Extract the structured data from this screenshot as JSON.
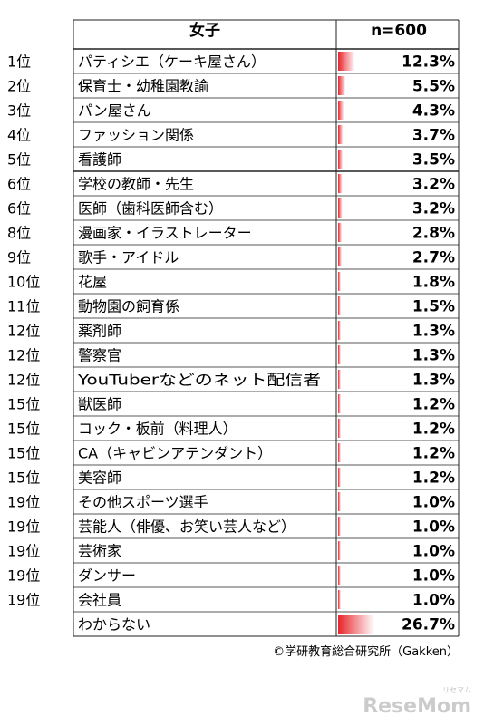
{
  "header": {
    "group_label": "女子",
    "sample_label": "n=600"
  },
  "chart_data": {
    "type": "table",
    "columns": [
      "女子",
      "n=600"
    ],
    "rows": [
      {
        "rank": "1位",
        "name": "パティシエ（ケーキ屋さん）",
        "value": 12.3,
        "label": "12.3%"
      },
      {
        "rank": "2位",
        "name": "保育士・幼稚園教諭",
        "value": 5.5,
        "label": "5.5%"
      },
      {
        "rank": "3位",
        "name": "パン屋さん",
        "value": 4.3,
        "label": "4.3%"
      },
      {
        "rank": "4位",
        "name": "ファッション関係",
        "value": 3.7,
        "label": "3.7%"
      },
      {
        "rank": "5位",
        "name": "看護師",
        "value": 3.5,
        "label": "3.5%"
      },
      {
        "rank": "6位",
        "name": "学校の教師・先生",
        "value": 3.2,
        "label": "3.2%"
      },
      {
        "rank": "6位",
        "name": "医師（歯科医師含む）",
        "value": 3.2,
        "label": "3.2%"
      },
      {
        "rank": "8位",
        "name": "漫画家・イラストレーター",
        "value": 2.8,
        "label": "2.8%"
      },
      {
        "rank": "9位",
        "name": "歌手・アイドル",
        "value": 2.7,
        "label": "2.7%"
      },
      {
        "rank": "10位",
        "name": "花屋",
        "value": 1.8,
        "label": "1.8%"
      },
      {
        "rank": "11位",
        "name": "動物園の飼育係",
        "value": 1.5,
        "label": "1.5%"
      },
      {
        "rank": "12位",
        "name": "薬剤師",
        "value": 1.3,
        "label": "1.3%"
      },
      {
        "rank": "12位",
        "name": "警察官",
        "value": 1.3,
        "label": "1.3%"
      },
      {
        "rank": "12位",
        "name": "YouTuberなどのネット配信者",
        "value": 1.3,
        "label": "1.3%"
      },
      {
        "rank": "15位",
        "name": "獣医師",
        "value": 1.2,
        "label": "1.2%"
      },
      {
        "rank": "15位",
        "name": "コック・板前（料理人）",
        "value": 1.2,
        "label": "1.2%"
      },
      {
        "rank": "15位",
        "name": "CA（キャビンアテンダント）",
        "value": 1.2,
        "label": "1.2%"
      },
      {
        "rank": "15位",
        "name": "美容師",
        "value": 1.2,
        "label": "1.2%"
      },
      {
        "rank": "19位",
        "name": "その他スポーツ選手",
        "value": 1.0,
        "label": "1.0%"
      },
      {
        "rank": "19位",
        "name": "芸能人（俳優、お笑い芸人など）",
        "value": 1.0,
        "label": "1.0%"
      },
      {
        "rank": "19位",
        "name": "芸術家",
        "value": 1.0,
        "label": "1.0%"
      },
      {
        "rank": "19位",
        "name": "ダンサー",
        "value": 1.0,
        "label": "1.0%"
      },
      {
        "rank": "19位",
        "name": "会社員",
        "value": 1.0,
        "label": "1.0%"
      },
      {
        "rank": "",
        "name": "わからない",
        "value": 26.7,
        "label": "26.7%"
      }
    ],
    "bar_color_start": "#e8242c",
    "bar_color_end": "#ffffff"
  },
  "credit": "©学研教育総合研究所（Gakken）",
  "watermark": {
    "main": "ReseMom",
    "sub": "リセマム"
  }
}
